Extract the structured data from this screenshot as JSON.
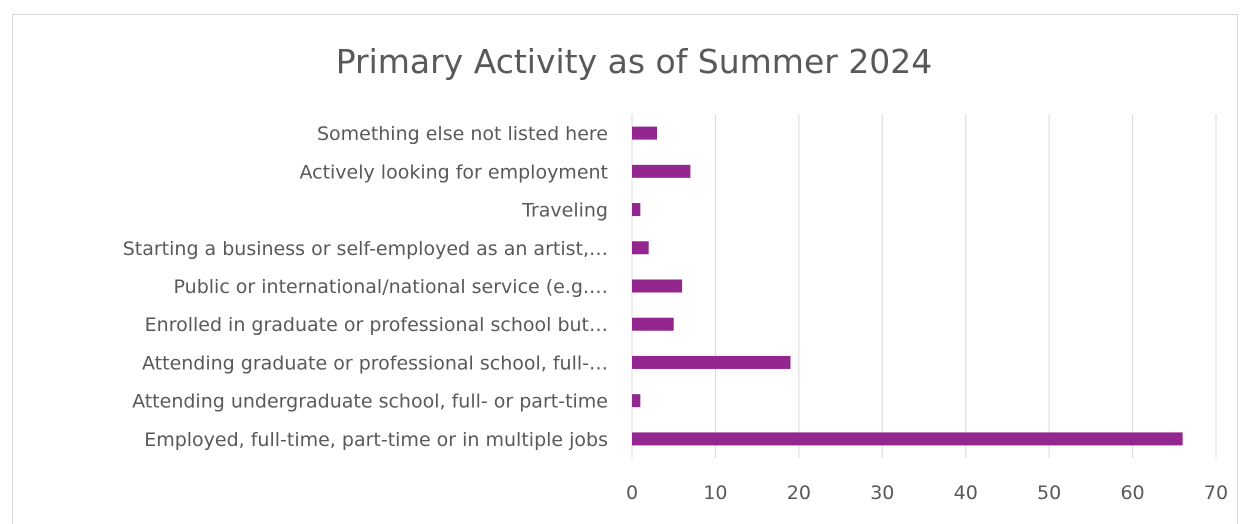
{
  "chart_data": {
    "type": "bar",
    "orientation": "horizontal",
    "title": "Primary Activity as of Summer 2024",
    "xlabel": "",
    "ylabel": "",
    "categories": [
      "Something else not listed here",
      "Actively looking for employment",
      "Traveling",
      "Starting a business or self-employed as an artist,…",
      "Public or international/national service (e.g.…",
      "Enrolled in graduate or professional school but…",
      "Attending graduate or professional school, full-…",
      "Attending undergraduate school, full- or part-time",
      "Employed, full-time, part-time or in multiple jobs"
    ],
    "values": [
      3,
      7,
      1,
      2,
      6,
      5,
      19,
      1,
      66
    ],
    "xlim": [
      0,
      70
    ],
    "xticks": [
      0,
      10,
      20,
      30,
      40,
      50,
      60,
      70
    ],
    "grid": true,
    "legend": "none",
    "bar_color": "#93268f"
  }
}
